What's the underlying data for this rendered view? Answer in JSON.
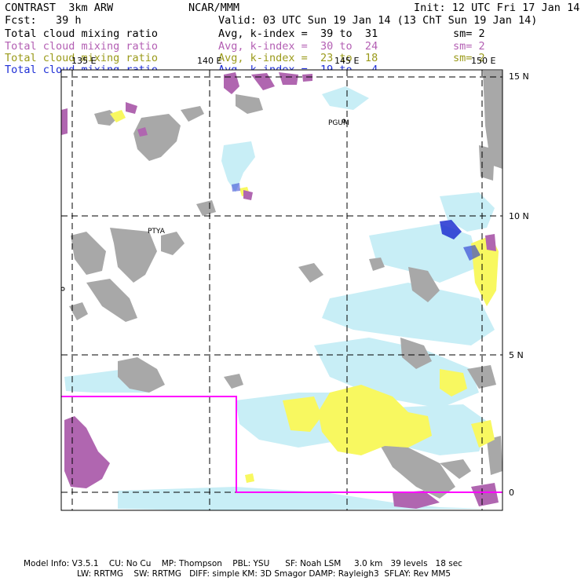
{
  "header": {
    "model_name": "CONTRAST  3km ARW",
    "center": "NCAR/MMM",
    "init": "Init: 12 UTC Fri 17 Jan 14",
    "fcst_label": "Fcst:   39 h",
    "valid": "Valid: 03 UTC Sun 19 Jan 14 (13 ChT Sun 19 Jan 14)"
  },
  "fields": [
    {
      "name": "Total cloud mixing ratio",
      "kindex": "Avg, k-index =  39 to  31",
      "sm": "sm= 2",
      "color": "#000000"
    },
    {
      "name": "Total cloud mixing ratio",
      "kindex": "Avg, k-index =  30 to  24",
      "sm": "sm= 2",
      "color": "#b35fb3"
    },
    {
      "name": "Total cloud mixing ratio",
      "kindex": "Avg, k-index =  23 to  18",
      "sm": "sm= 2",
      "color": "#9a9a1a"
    },
    {
      "name": "Total cloud mixing ratio",
      "kindex": "Avg, k-index =  19 to   4",
      "sm": "",
      "color": "#1f2fd6"
    }
  ],
  "map": {
    "lon_labels": [
      "135 E",
      "140 E",
      "145 E",
      "150 E"
    ],
    "lat_labels": [
      "15 N",
      "10 N",
      "5 N",
      "0"
    ],
    "places": [
      "PGUM",
      "PTYA"
    ],
    "colors": {
      "high_cloud": "#a8a8a8",
      "mid_cloud": "#b066b0",
      "low_cloud": "#f8f860",
      "shallow_cloud": "#c8eef6",
      "deep_cloud": "#2030d0",
      "domain_box": "#ff00ff"
    }
  },
  "footer": {
    "line1": "Model Info: V3.5.1    CU: No Cu    MP: Thompson    PBL: YSU      SF: Noah LSM     3.0 km   39 levels   18 sec",
    "line2": "LW: RRTMG    SW: RRTMG   DIFF: simple KM: 3D Smagor DAMP: Rayleigh3  SFLAY: Rev MM5"
  }
}
